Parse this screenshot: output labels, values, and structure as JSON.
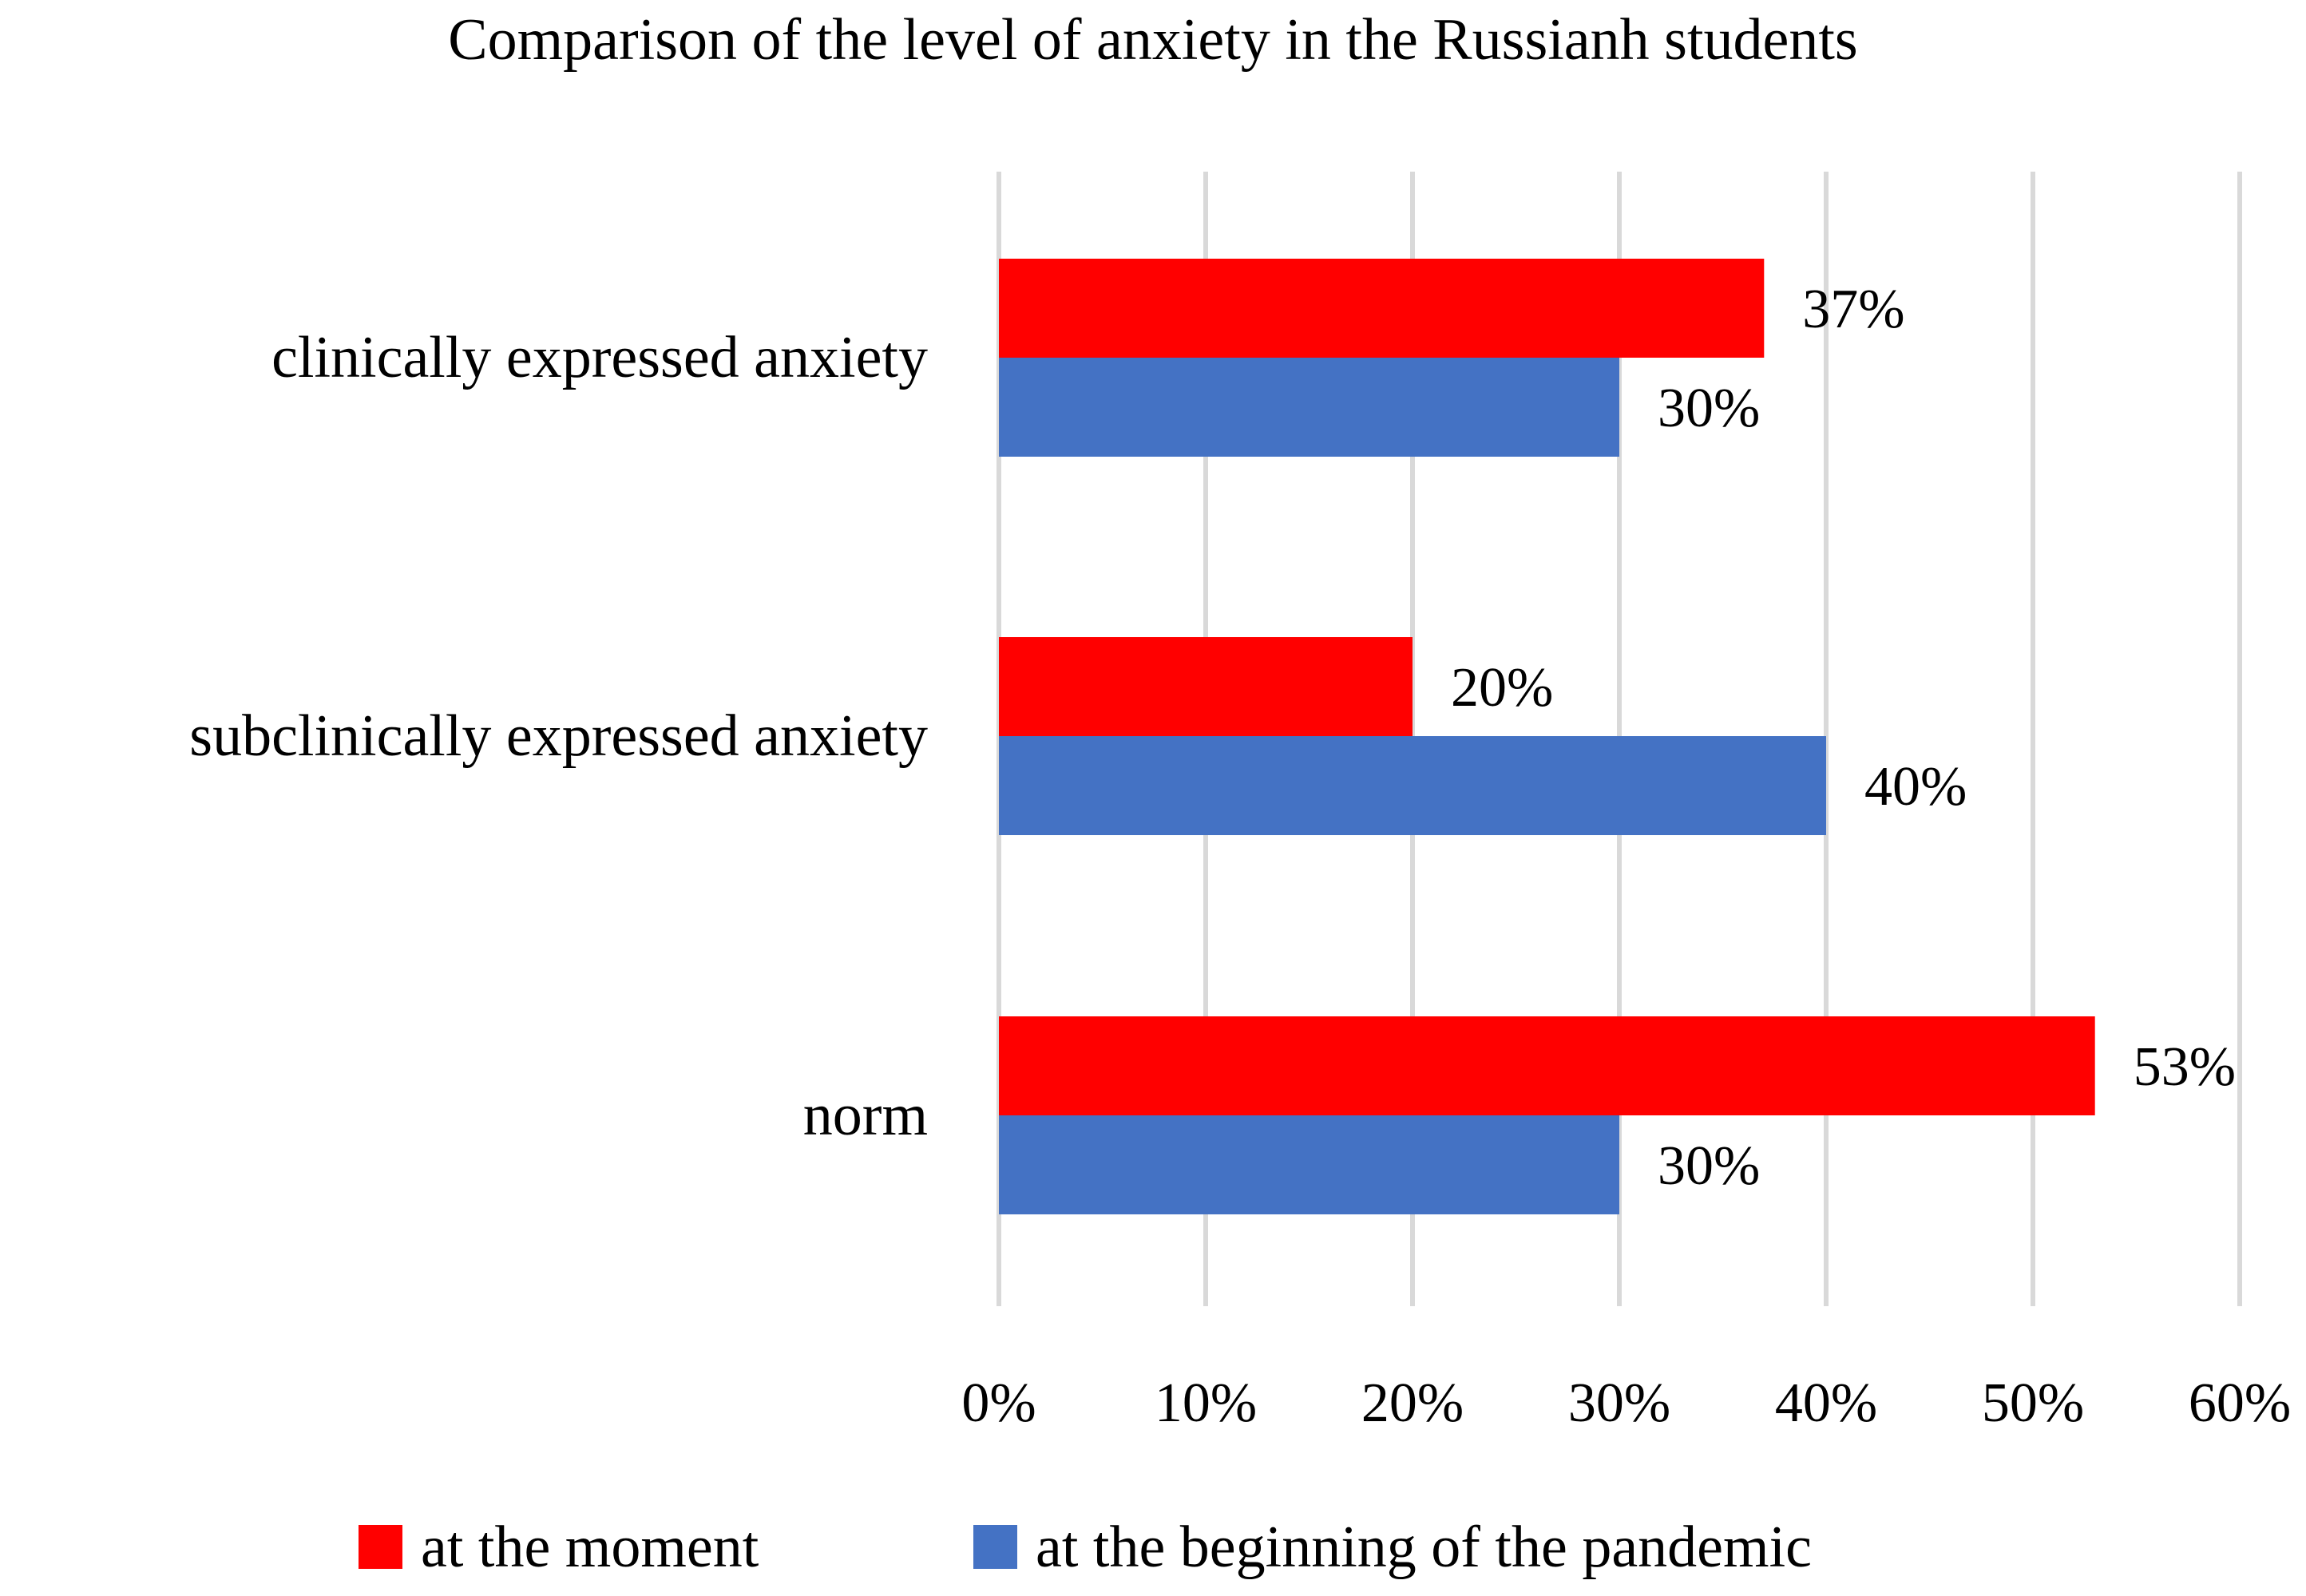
{
  "chart_data": {
    "type": "bar",
    "orientation": "horizontal",
    "title": "Comparison of the level of anxiety in the Russianh students",
    "categories": [
      "clinically expressed anxiety",
      "subclinically expressed anxiety",
      "norm"
    ],
    "series": [
      {
        "name": "at the moment",
        "color": "#ff0000",
        "values": [
          37,
          20,
          53
        ],
        "labels": [
          "37%",
          "20%",
          "53%"
        ]
      },
      {
        "name": "at the beginning of the pandemic",
        "color": "#4472c4",
        "values": [
          30,
          40,
          30
        ],
        "labels": [
          "30%",
          "40%",
          "30%"
        ]
      }
    ],
    "xlim": [
      0,
      60
    ],
    "xticks": [
      0,
      10,
      20,
      30,
      40,
      50,
      60
    ],
    "xtick_labels": [
      "0%",
      "10%",
      "20%",
      "30%",
      "40%",
      "50%",
      "60%"
    ],
    "xlabel": "",
    "ylabel": "",
    "grid": true,
    "gridline_color": "#d9d9d9",
    "legend_position": "bottom"
  }
}
